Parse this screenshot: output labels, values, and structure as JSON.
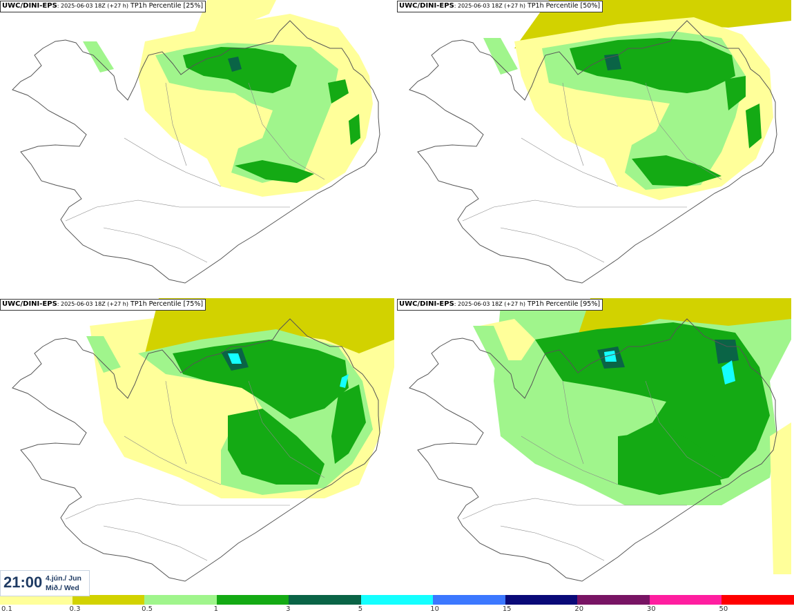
{
  "panels": [
    {
      "model": "UWC/DINI-EPS",
      "run": ": 2025-06-03 18Z (+27 h)",
      "product": "TP1h Percentile [25%]"
    },
    {
      "model": "UWC/DINI-EPS",
      "run": ": 2025-06-03 18Z (+27 h)",
      "product": "TP1h Percentile [50%]"
    },
    {
      "model": "UWC/DINI-EPS",
      "run": ": 2025-06-03 18Z (+27 h)",
      "product": "TP1h Percentile [75%]"
    },
    {
      "model": "UWC/DINI-EPS",
      "run": ": 2025-06-03 18Z (+27 h)",
      "product": "TP1h Percentile [95%]"
    }
  ],
  "time": {
    "clock": "21:00",
    "date_line1": "4.jún./ Jun",
    "date_line2": "Mið./ Wed"
  },
  "legend": {
    "colors": [
      "#ffff9a",
      "#d2d200",
      "#a0f58c",
      "#14aa14",
      "#0a6446",
      "#14ffff",
      "#3c78ff",
      "#0a0a78",
      "#781464",
      "#ff1ea0",
      "#ff0000"
    ],
    "ticks": [
      "0.1",
      "0.3",
      "0.5",
      "1",
      "3",
      "5",
      "10",
      "15",
      "20",
      "30",
      "50"
    ]
  },
  "palette": {
    "light_yellow": "#ffff9a",
    "olive": "#d2d200",
    "light_green": "#a0f58c",
    "green": "#14aa14",
    "dark_green": "#0a6446",
    "cyan": "#14ffff",
    "coastline": "#555555"
  }
}
